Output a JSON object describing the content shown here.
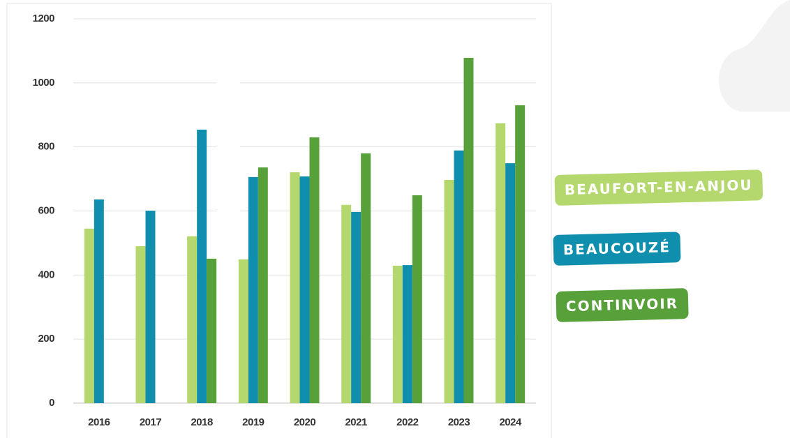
{
  "chart_data": {
    "type": "bar",
    "categories": [
      "2016",
      "2017",
      "2018",
      "2019",
      "2020",
      "2021",
      "2022",
      "2023",
      "2024"
    ],
    "series": [
      {
        "name": "BEAUFORT-EN-ANJOU",
        "color": "#b5d86e",
        "values": [
          545,
          490,
          521,
          449,
          721,
          619,
          429,
          697,
          874
        ]
      },
      {
        "name": "BEAUCOUZÉ",
        "color": "#0f8fad",
        "values": [
          636,
          601,
          854,
          706,
          708,
          597,
          431,
          789,
          749
        ]
      },
      {
        "name": "CONTINVOIR",
        "color": "#57a03a",
        "values": [
          null,
          null,
          451,
          736,
          830,
          780,
          649,
          1078,
          930
        ]
      }
    ],
    "ylim": [
      0,
      1200
    ],
    "yticks": [
      0,
      200,
      400,
      600,
      800,
      1000,
      1200
    ],
    "grid": true,
    "legend": "right"
  }
}
